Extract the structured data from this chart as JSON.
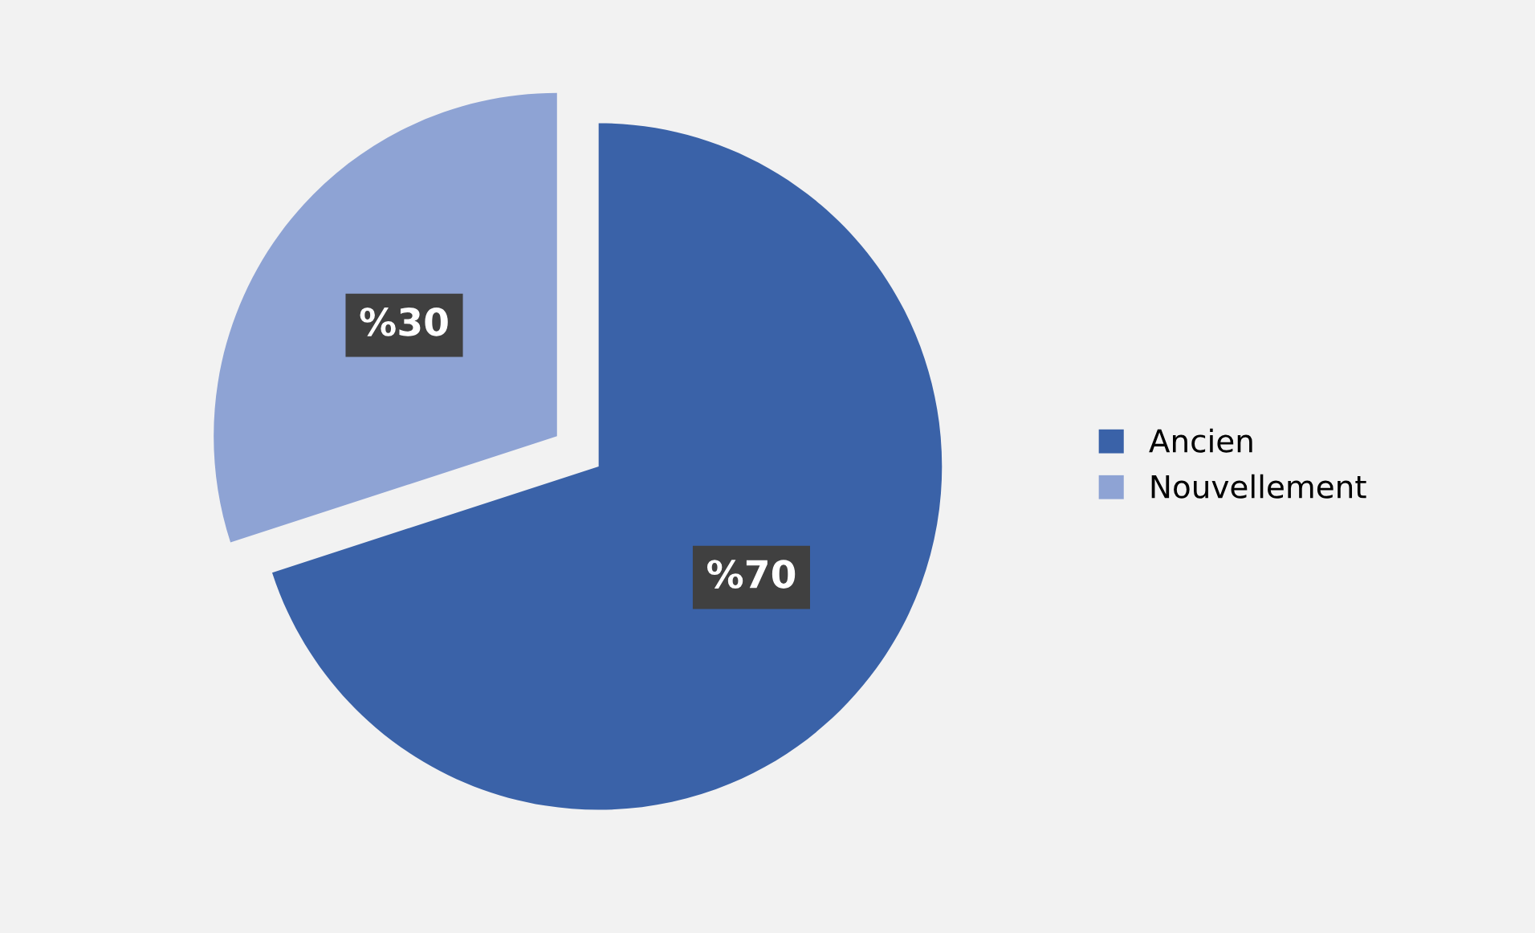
{
  "chart_data": {
    "type": "pie",
    "categories": [
      "Ancien",
      "Nouvellement"
    ],
    "values": [
      70,
      30
    ],
    "colors": [
      "#3a62a8",
      "#8ea3d4"
    ],
    "value_labels": [
      "%70",
      "%30"
    ],
    "legend": "right"
  }
}
